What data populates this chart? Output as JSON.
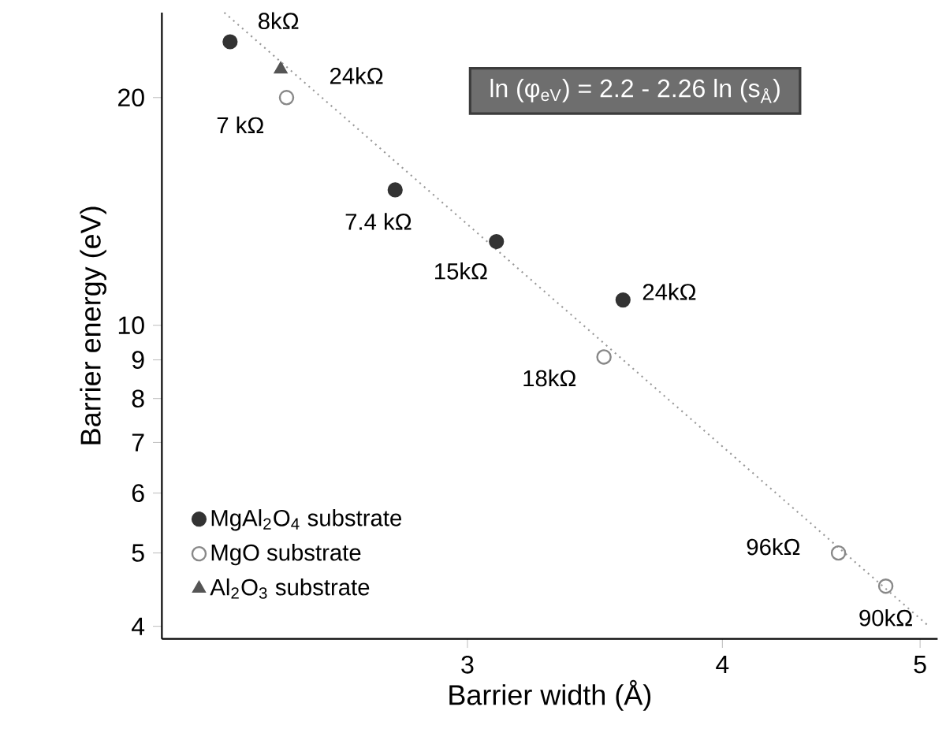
{
  "chart_data": {
    "type": "scatter",
    "xlabel": "Barrier width (Å)",
    "ylabel": "Barrier energy (eV)",
    "log": "xy",
    "xlim": [
      2.125,
      5.1
    ],
    "ylim": [
      3.85,
      25.9
    ],
    "xticks": [
      3,
      4,
      5
    ],
    "yticks": [
      4,
      5,
      6,
      7,
      8,
      9,
      10,
      20
    ],
    "legend": "bottom left",
    "grid": false,
    "series": [
      {
        "name": "MgAl$_{2}$O$_{4}$ substrate",
        "color": "#333333",
        "marker": "circle",
        "x": [
          2.295,
          2.765,
          3.1,
          3.576
        ],
        "values": [
          23.7,
          15.1,
          12.9,
          10.8
        ]
      },
      {
        "name": "MgO substrate",
        "color": "#888888",
        "marker": "circle",
        "x": [
          2.446,
          3.5,
          4.56,
          4.81
        ],
        "values": [
          20,
          9.08,
          5.0,
          4.52
        ]
      },
      {
        "name": "Al$_{2}$O$_{3}$ substrate",
        "color": "#555555",
        "marker": "triangle",
        "x": [
          2.43
        ],
        "values": [
          21.8
        ]
      },
      {
        "type": "line",
        "color": "#999999",
        "marker": "none",
        "line_style": "dotted",
        "x": [
          2.28,
          5.05
        ],
        "values": [
          25.9,
          4.0
        ]
      }
    ],
    "annotations": [
      {
        "text": "8kΩ",
        "x": 2.295,
        "y": 23.7
      },
      {
        "text": "24kΩ",
        "x": 2.43,
        "y": 21.8
      },
      {
        "text": "7 kΩ",
        "x": 2.446,
        "y": 20
      },
      {
        "text": "7.4 kΩ",
        "x": 2.765,
        "y": 15.1
      },
      {
        "text": "15kΩ",
        "x": 3.1,
        "y": 12.9
      },
      {
        "text": "24kΩ",
        "x": 3.576,
        "y": 10.8
      },
      {
        "text": "18kΩ",
        "x": 3.5,
        "y": 9.08
      },
      {
        "text": "96kΩ",
        "x": 4.56,
        "y": 5.0
      },
      {
        "text": "90kΩ",
        "x": 4.81,
        "y": 4.52
      },
      "ln (φ$_{eV}$) = 2.2 - 2.26 ln (s$_{Å}$)"
    ]
  }
}
